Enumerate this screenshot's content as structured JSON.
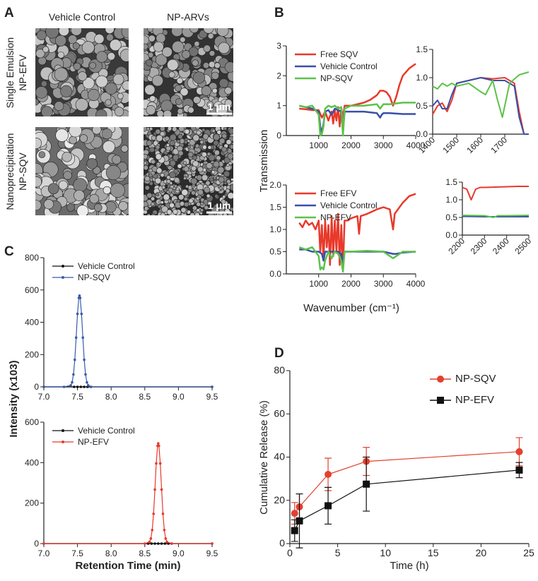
{
  "panel_labels": [
    "A",
    "B",
    "C",
    "D"
  ],
  "sem": {
    "columns": [
      "Vehicle Control",
      "NP-ARVs"
    ],
    "rows": [
      [
        "Single Emulsion",
        "NP-EFV"
      ],
      [
        "Nanoprecipitation",
        "NP-SQV"
      ]
    ],
    "scale_bars": [
      "1 μm",
      "1 μm"
    ]
  },
  "panel_b": {
    "ylabel": "Transmission",
    "xlabel": "Wavenumber (cm⁻¹)"
  },
  "panel_c": {
    "ylabel": "Intensity (x103)"
  },
  "chart_data": [
    {
      "type": "line",
      "xlim": [
        0,
        4000
      ],
      "ylim": [
        0,
        3
      ],
      "xticks": [
        1000,
        2000,
        3000,
        4000
      ],
      "yticks": [
        0,
        1,
        2,
        3
      ],
      "legend": "upper left",
      "series": [
        {
          "name": "Free SQV",
          "color": "#e8392b",
          "x": [
            400,
            600,
            800,
            1000,
            1100,
            1200,
            1300,
            1400,
            1450,
            1500,
            1550,
            1600,
            1650,
            1700,
            1750,
            1800,
            2000,
            2200,
            2400,
            2600,
            2800,
            2900,
            3000,
            3100,
            3200,
            3300,
            3400,
            3500,
            3600,
            3800,
            4000
          ],
          "values": [
            0.9,
            0.88,
            0.85,
            0.85,
            0.6,
            0.8,
            0.5,
            0.8,
            0.4,
            0.85,
            0.5,
            0.95,
            0.3,
            0.9,
            0.6,
            1.0,
            1.0,
            1.05,
            1.1,
            1.2,
            1.35,
            1.5,
            1.5,
            1.45,
            1.3,
            1.0,
            1.3,
            1.7,
            2.0,
            2.25,
            2.4
          ]
        },
        {
          "name": "Vehicle Control",
          "color": "#3a4fa8",
          "x": [
            400,
            600,
            800,
            1000,
            1050,
            1100,
            1150,
            1200,
            1300,
            1400,
            1500,
            1600,
            1700,
            1750,
            1800,
            2000,
            2400,
            2800,
            2900,
            2950,
            3000,
            3200,
            3600,
            4000
          ],
          "values": [
            1.0,
            0.95,
            0.9,
            0.8,
            0.3,
            0.1,
            0.4,
            0.8,
            0.85,
            0.7,
            0.9,
            0.85,
            0.8,
            0.1,
            0.8,
            0.8,
            0.8,
            0.75,
            0.6,
            0.7,
            0.75,
            0.75,
            0.72,
            0.72
          ]
        },
        {
          "name": "NP-SQV",
          "color": "#5cc24a",
          "x": [
            400,
            600,
            800,
            1000,
            1050,
            1100,
            1150,
            1200,
            1300,
            1400,
            1500,
            1600,
            1700,
            1750,
            1800,
            2000,
            2400,
            2800,
            2900,
            3000,
            3200,
            3600,
            4000
          ],
          "values": [
            1.0,
            0.95,
            1.0,
            0.7,
            0.0,
            0.05,
            0.3,
            0.9,
            1.0,
            0.95,
            1.0,
            0.9,
            0.95,
            0.0,
            0.9,
            1.0,
            1.0,
            1.05,
            0.9,
            1.05,
            1.05,
            1.1,
            1.1
          ]
        }
      ]
    },
    {
      "type": "line",
      "xlim": [
        1400,
        1800
      ],
      "ylim": [
        0,
        1.5
      ],
      "xticks": [
        1400,
        1500,
        1600,
        1700
      ],
      "yticks": [
        {
          "value": 0,
          "label": "0.0"
        },
        0.5,
        {
          "value": 1,
          "label": "1.0"
        },
        1.5
      ],
      "series": [
        {
          "color": "#e8392b",
          "x": [
            1400,
            1420,
            1440,
            1460,
            1480,
            1500,
            1550,
            1600,
            1650,
            1700,
            1740,
            1760,
            1780,
            1800
          ],
          "values": [
            0.35,
            0.5,
            0.55,
            0.4,
            0.6,
            0.9,
            0.95,
            1.0,
            0.98,
            1.0,
            0.9,
            0.4,
            0.0,
            0.0
          ]
        },
        {
          "color": "#3a4fa8",
          "x": [
            1400,
            1420,
            1440,
            1460,
            1480,
            1500,
            1550,
            1600,
            1650,
            1700,
            1740,
            1760,
            1780,
            1800
          ],
          "values": [
            0.5,
            0.6,
            0.45,
            0.45,
            0.7,
            0.9,
            0.95,
            1.0,
            0.95,
            0.95,
            0.85,
            0.3,
            0.0,
            0.0
          ]
        },
        {
          "color": "#5cc24a",
          "x": [
            1400,
            1420,
            1440,
            1460,
            1480,
            1500,
            1550,
            1600,
            1620,
            1650,
            1670,
            1690,
            1720,
            1760,
            1800
          ],
          "values": [
            0.85,
            0.8,
            0.9,
            0.85,
            0.9,
            0.85,
            0.9,
            0.75,
            0.7,
            0.95,
            0.6,
            0.3,
            0.9,
            1.05,
            1.1
          ]
        }
      ]
    },
    {
      "type": "line",
      "xlim": [
        0,
        4000
      ],
      "ylim": [
        0,
        2
      ],
      "xticks": [
        1000,
        2000,
        3000,
        4000
      ],
      "yticks": [
        {
          "value": 0,
          "label": "0.0"
        },
        0.5,
        {
          "value": 1,
          "label": "1.0"
        },
        1.5,
        {
          "value": 2,
          "label": "2.0"
        }
      ],
      "legend": "upper left",
      "series": [
        {
          "name": "Free EFV",
          "color": "#e8392b",
          "x": [
            400,
            500,
            600,
            700,
            800,
            900,
            1000,
            1050,
            1100,
            1150,
            1200,
            1250,
            1300,
            1350,
            1400,
            1450,
            1500,
            1550,
            1600,
            1650,
            1700,
            1750,
            1800,
            1900,
            2000,
            2200,
            2250,
            2300,
            2500,
            2800,
            3000,
            3200,
            3300,
            3350,
            3400,
            3600,
            3800,
            4000
          ],
          "values": [
            1.15,
            1.05,
            1.2,
            1.1,
            1.15,
            1.0,
            1.2,
            0.5,
            1.1,
            0.3,
            1.2,
            0.6,
            1.1,
            0.2,
            1.3,
            0.4,
            1.2,
            0.5,
            1.35,
            0.2,
            1.1,
            0.1,
            1.2,
            1.2,
            1.25,
            1.3,
            0.9,
            1.3,
            1.35,
            1.45,
            1.5,
            1.45,
            1.0,
            1.35,
            1.4,
            1.6,
            1.75,
            1.8
          ]
        },
        {
          "name": "Vehicle Control",
          "color": "#3a4fa8",
          "x": [
            400,
            600,
            800,
            1000,
            1100,
            1150,
            1200,
            1400,
            1600,
            1700,
            1750,
            1800,
            2000,
            2500,
            3000,
            3300,
            3400,
            3600,
            4000
          ],
          "values": [
            0.55,
            0.55,
            0.5,
            0.5,
            0.45,
            0.3,
            0.5,
            0.5,
            0.5,
            0.45,
            0.2,
            0.5,
            0.5,
            0.5,
            0.5,
            0.45,
            0.45,
            0.48,
            0.5
          ]
        },
        {
          "name": "NP-EFV",
          "color": "#5cc24a",
          "x": [
            400,
            600,
            800,
            1000,
            1050,
            1100,
            1150,
            1200,
            1300,
            1400,
            1500,
            1600,
            1700,
            1750,
            1800,
            2000,
            2500,
            3000,
            3300,
            3400,
            3600,
            4000
          ],
          "values": [
            0.6,
            0.55,
            0.6,
            0.4,
            0.1,
            0.15,
            0.1,
            0.3,
            0.5,
            0.35,
            0.5,
            0.45,
            0.3,
            0.05,
            0.5,
            0.5,
            0.52,
            0.5,
            0.35,
            0.4,
            0.5,
            0.5
          ]
        }
      ]
    },
    {
      "type": "line",
      "xlim": [
        2200,
        2500
      ],
      "ylim": [
        0,
        1.5
      ],
      "xticks": [
        2200,
        2300,
        2400,
        2500
      ],
      "yticks": [
        {
          "value": 0,
          "label": "0.0"
        },
        0.5,
        {
          "value": 1,
          "label": "1.0"
        },
        1.5
      ],
      "series": [
        {
          "color": "#e8392b",
          "x": [
            2200,
            2220,
            2240,
            2260,
            2280,
            2300,
            2350,
            2400,
            2450,
            2500
          ],
          "values": [
            1.35,
            1.3,
            1.0,
            1.3,
            1.35,
            1.35,
            1.36,
            1.37,
            1.38,
            1.38
          ]
        },
        {
          "color": "#3a4fa8",
          "x": [
            2200,
            2300,
            2400,
            2500
          ],
          "values": [
            0.53,
            0.52,
            0.52,
            0.52
          ]
        },
        {
          "color": "#5cc24a",
          "x": [
            2200,
            2300,
            2340,
            2360,
            2400,
            2500
          ],
          "values": [
            0.56,
            0.55,
            0.5,
            0.55,
            0.55,
            0.56
          ]
        }
      ]
    },
    {
      "type": "line",
      "xlim": [
        7,
        9.5
      ],
      "ylim": [
        0,
        800
      ],
      "xticks": [
        {
          "value": 7,
          "label": "7.0"
        },
        7.5,
        {
          "value": 8,
          "label": "8.0"
        },
        8.5,
        {
          "value": 9,
          "label": "9.0"
        },
        9.5
      ],
      "yticks": [
        0,
        200,
        400,
        600,
        800
      ],
      "legend": "upper left",
      "series": [
        {
          "name": "Vehicle Control",
          "color": "#111111",
          "marker": "circle",
          "x": [
            7.0,
            7.45,
            7.5,
            7.55,
            7.6,
            7.65,
            7.7,
            9.5
          ],
          "values": [
            0,
            0,
            0,
            0,
            0,
            0,
            0,
            0
          ]
        },
        {
          "name": "NP-SQV",
          "color": "#3a5ba8",
          "marker": "circle",
          "x": [
            7.0,
            7.3,
            7.4,
            7.42,
            7.44,
            7.46,
            7.48,
            7.5,
            7.52,
            7.53,
            7.54,
            7.56,
            7.58,
            7.6,
            7.62,
            7.64,
            7.66,
            7.7,
            9.5
          ],
          "values": [
            0,
            0,
            9,
            28,
            77,
            168,
            305,
            452,
            551,
            565,
            551,
            452,
            305,
            168,
            77,
            28,
            9,
            0,
            0
          ]
        }
      ]
    },
    {
      "type": "line",
      "xlim": [
        7,
        9.5
      ],
      "ylim": [
        0,
        600
      ],
      "xticks": [
        {
          "value": 7,
          "label": "7.0"
        },
        7.5,
        {
          "value": 8,
          "label": "8.0"
        },
        8.5,
        {
          "value": 9,
          "label": "9.0"
        },
        9.5
      ],
      "yticks": [
        0,
        200,
        400,
        600
      ],
      "legend": "upper left",
      "xlabel": "Retention Time (min)",
      "series": [
        {
          "name": "Vehicle Control",
          "color": "#111111",
          "marker": "circle",
          "x": [
            7.0,
            8.55,
            8.6,
            8.65,
            8.7,
            8.75,
            8.8,
            8.85,
            8.9,
            9.5
          ],
          "values": [
            0,
            0,
            0,
            0,
            0,
            0,
            0,
            0,
            0,
            0
          ]
        },
        {
          "name": "NP-EFV",
          "color": "#e8392b",
          "marker": "circle",
          "x": [
            7.0,
            8.5,
            8.57,
            8.59,
            8.61,
            8.63,
            8.65,
            8.67,
            8.69,
            8.7,
            8.71,
            8.73,
            8.75,
            8.77,
            8.79,
            8.81,
            8.83,
            8.9,
            9.5
          ],
          "values": [
            0,
            0,
            8,
            25,
            67,
            147,
            267,
            396,
            483,
            495,
            483,
            396,
            267,
            147,
            67,
            25,
            8,
            0,
            0
          ]
        }
      ]
    },
    {
      "type": "line",
      "xlim": [
        0,
        25
      ],
      "ylim": [
        0,
        80
      ],
      "xticks": [
        0,
        5,
        10,
        15,
        20,
        25
      ],
      "yticks": [
        0,
        20,
        40,
        60,
        80
      ],
      "legend": "upper right",
      "xlabel": "Time (h)",
      "ylabel": "Cumulative Release (%)",
      "series": [
        {
          "name": "NP-SQV",
          "color": "#e2412f",
          "marker": "circle",
          "x": [
            0.5,
            1,
            4,
            8,
            24
          ],
          "values": [
            14,
            17,
            32,
            38,
            42.5
          ],
          "errors": [
            5,
            6,
            7.5,
            6.5,
            6.5
          ]
        },
        {
          "name": "NP-EFV",
          "color": "#111111",
          "marker": "square",
          "x": [
            0.5,
            1,
            4,
            8,
            24
          ],
          "values": [
            6,
            10.5,
            17.5,
            27.5,
            34
          ],
          "errors": [
            5,
            12.5,
            8.5,
            12.5,
            3.5
          ]
        }
      ]
    }
  ]
}
